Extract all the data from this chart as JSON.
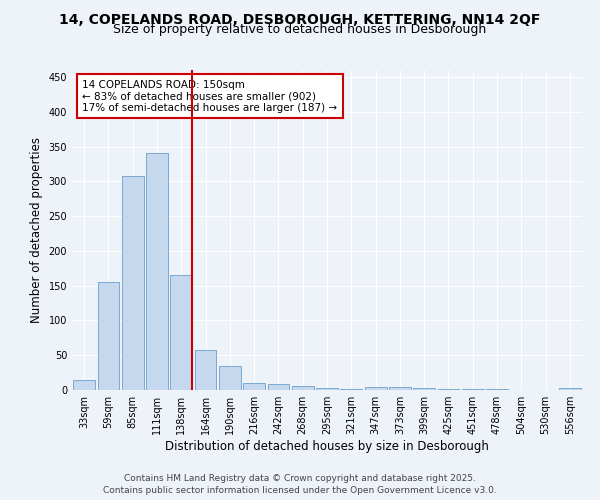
{
  "title_line1": "14, COPELANDS ROAD, DESBOROUGH, KETTERING, NN14 2QF",
  "title_line2": "Size of property relative to detached houses in Desborough",
  "xlabel": "Distribution of detached houses by size in Desborough",
  "ylabel": "Number of detached properties",
  "categories": [
    "33sqm",
    "59sqm",
    "85sqm",
    "111sqm",
    "138sqm",
    "164sqm",
    "190sqm",
    "216sqm",
    "242sqm",
    "268sqm",
    "295sqm",
    "321sqm",
    "347sqm",
    "373sqm",
    "399sqm",
    "425sqm",
    "451sqm",
    "478sqm",
    "504sqm",
    "530sqm",
    "556sqm"
  ],
  "values": [
    15,
    155,
    308,
    340,
    165,
    57,
    35,
    10,
    8,
    6,
    3,
    1,
    5,
    4,
    3,
    2,
    1,
    1,
    0,
    0,
    3
  ],
  "bar_color": "#c5d8ed",
  "bar_edge_color": "#6a9fcb",
  "vline_index": 4,
  "vline_color": "#cc0000",
  "annotation_text": "14 COPELANDS ROAD: 150sqm\n← 83% of detached houses are smaller (902)\n17% of semi-detached houses are larger (187) →",
  "annotation_box_color": "#ffffff",
  "annotation_box_edge": "#cc0000",
  "ylim": [
    0,
    460
  ],
  "yticks": [
    0,
    50,
    100,
    150,
    200,
    250,
    300,
    350,
    400,
    450
  ],
  "footer": "Contains HM Land Registry data © Crown copyright and database right 2025.\nContains public sector information licensed under the Open Government Licence v3.0.",
  "background_color": "#eef2f9",
  "grid_color": "#ffffff",
  "title_fontsize": 10,
  "subtitle_fontsize": 9,
  "axis_label_fontsize": 8.5,
  "tick_fontsize": 7,
  "annotation_fontsize": 7.5,
  "footer_fontsize": 6.5
}
